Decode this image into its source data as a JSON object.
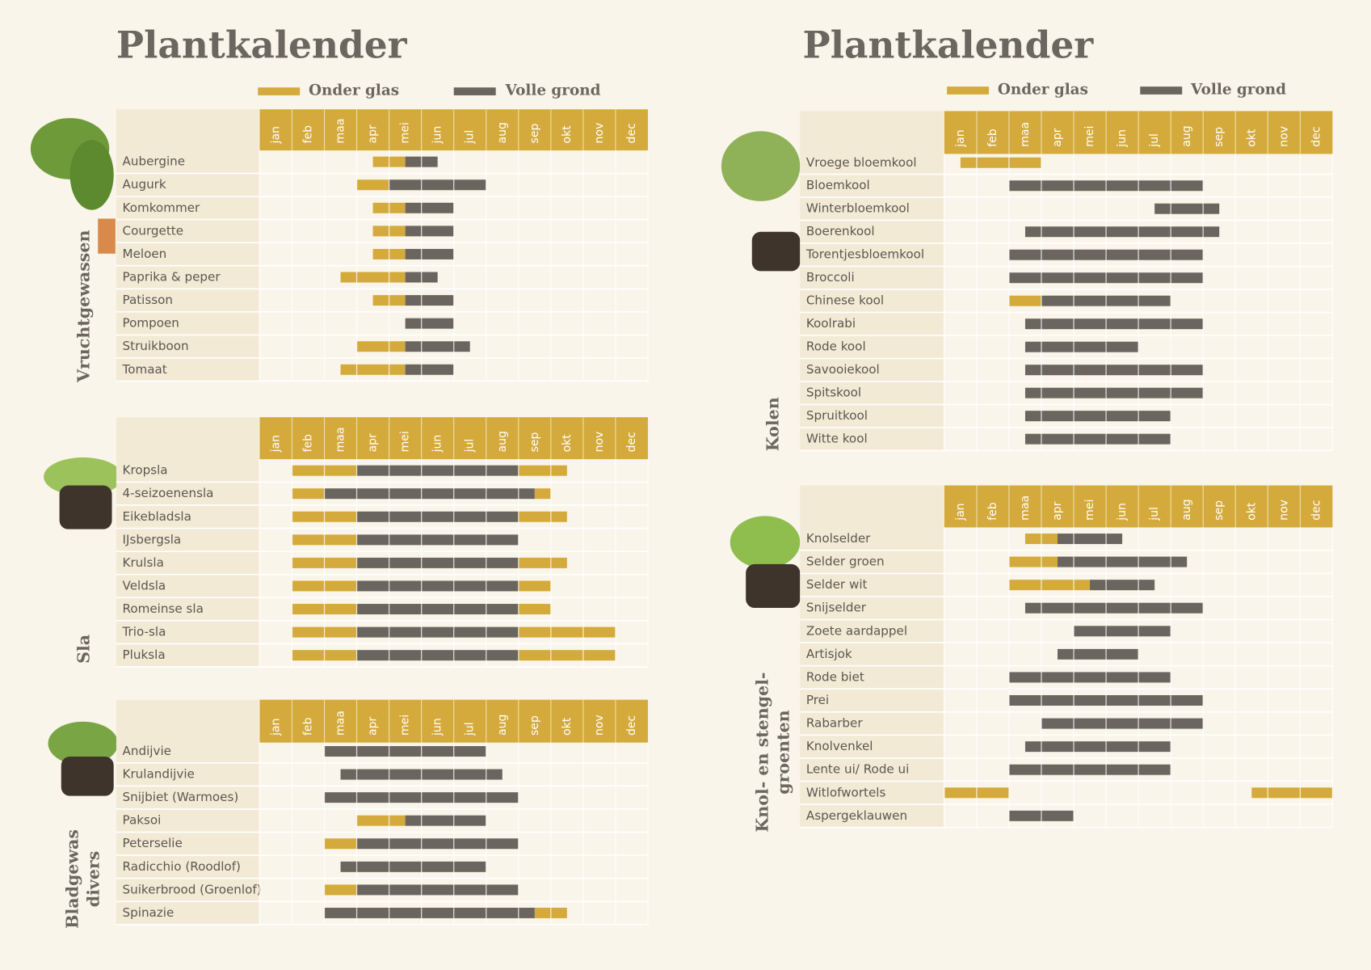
{
  "months": [
    "jan",
    "feb",
    "maa",
    "apr",
    "mei",
    "jun",
    "jul",
    "aug",
    "sep",
    "okt",
    "nov",
    "dec"
  ],
  "pages": [
    {
      "title": "Plantkalender",
      "legend": {
        "glas": "Onder glas",
        "grond": "Volle grond"
      },
      "sections": [
        {
          "label": [
            "Vruchtgewassen"
          ],
          "rows": [
            {
              "name": "Aubergine",
              "glas": [
                [
                  3.5,
                  4.5
                ]
              ],
              "grond": [
                [
                  4.5,
                  5.5
                ]
              ]
            },
            {
              "name": "Augurk",
              "glas": [
                [
                  3,
                  4
                ]
              ],
              "grond": [
                [
                  4,
                  7
                ]
              ]
            },
            {
              "name": "Komkommer",
              "glas": [
                [
                  3.5,
                  4.5
                ]
              ],
              "grond": [
                [
                  4.5,
                  6
                ]
              ]
            },
            {
              "name": "Courgette",
              "glas": [
                [
                  3.5,
                  4.5
                ]
              ],
              "grond": [
                [
                  4.5,
                  6
                ]
              ]
            },
            {
              "name": "Meloen",
              "glas": [
                [
                  3.5,
                  4.5
                ]
              ],
              "grond": [
                [
                  4.5,
                  6
                ]
              ]
            },
            {
              "name": "Paprika & peper",
              "glas": [
                [
                  2.5,
                  4.5
                ]
              ],
              "grond": [
                [
                  4.5,
                  5.5
                ]
              ]
            },
            {
              "name": "Patisson",
              "glas": [
                [
                  3.5,
                  4.5
                ]
              ],
              "grond": [
                [
                  4.5,
                  6
                ]
              ]
            },
            {
              "name": "Pompoen",
              "glas": [],
              "grond": [
                [
                  4.5,
                  6
                ]
              ]
            },
            {
              "name": "Struikboon",
              "glas": [
                [
                  3,
                  4.5
                ]
              ],
              "grond": [
                [
                  4.5,
                  6.5
                ]
              ]
            },
            {
              "name": "Tomaat",
              "glas": [
                [
                  2.5,
                  4.5
                ]
              ],
              "grond": [
                [
                  4.5,
                  6
                ]
              ]
            }
          ]
        },
        {
          "label": [
            "Sla"
          ],
          "rows": [
            {
              "name": "Kropsla",
              "glas": [
                [
                  1,
                  3
                ],
                [
                  8,
                  9.5
                ]
              ],
              "grond": [
                [
                  3,
                  8
                ]
              ]
            },
            {
              "name": "4-seizoenensla",
              "glas": [
                [
                  1,
                  2
                ],
                [
                  8.5,
                  9
                ]
              ],
              "grond": [
                [
                  2,
                  8.5
                ]
              ]
            },
            {
              "name": "Eikebladsla",
              "glas": [
                [
                  1,
                  3
                ],
                [
                  8,
                  9.5
                ]
              ],
              "grond": [
                [
                  3,
                  8
                ]
              ]
            },
            {
              "name": "IJsbergsla",
              "glas": [
                [
                  1,
                  3
                ]
              ],
              "grond": [
                [
                  3,
                  8
                ]
              ]
            },
            {
              "name": "Krulsla",
              "glas": [
                [
                  1,
                  3
                ],
                [
                  8,
                  9.5
                ]
              ],
              "grond": [
                [
                  3,
                  8
                ]
              ]
            },
            {
              "name": "Veldsla",
              "glas": [
                [
                  1,
                  3
                ],
                [
                  8,
                  9
                ]
              ],
              "grond": [
                [
                  3,
                  8
                ]
              ]
            },
            {
              "name": "Romeinse sla",
              "glas": [
                [
                  1,
                  3
                ],
                [
                  8,
                  9
                ]
              ],
              "grond": [
                [
                  3,
                  8
                ]
              ]
            },
            {
              "name": "Trio-sla",
              "glas": [
                [
                  1,
                  3
                ],
                [
                  8,
                  11
                ]
              ],
              "grond": [
                [
                  3,
                  8
                ]
              ]
            },
            {
              "name": "Pluksla",
              "glas": [
                [
                  1,
                  3
                ],
                [
                  8,
                  11
                ]
              ],
              "grond": [
                [
                  3,
                  8
                ]
              ]
            }
          ]
        },
        {
          "label": [
            "Bladgewas",
            "divers"
          ],
          "rows": [
            {
              "name": "Andijvie",
              "glas": [],
              "grond": [
                [
                  2,
                  7
                ]
              ]
            },
            {
              "name": "Krulandijvie",
              "glas": [],
              "grond": [
                [
                  2.5,
                  7.5
                ]
              ]
            },
            {
              "name": "Snijbiet (Warmoes)",
              "glas": [],
              "grond": [
                [
                  2,
                  8
                ]
              ]
            },
            {
              "name": "Paksoi",
              "glas": [
                [
                  3,
                  4.5
                ]
              ],
              "grond": [
                [
                  4.5,
                  7
                ]
              ]
            },
            {
              "name": "Peterselie",
              "glas": [
                [
                  2,
                  3
                ]
              ],
              "grond": [
                [
                  3,
                  8
                ]
              ]
            },
            {
              "name": "Radicchio (Roodlof)",
              "glas": [],
              "grond": [
                [
                  2.5,
                  7
                ]
              ]
            },
            {
              "name": "Suikerbrood (Groenlof)",
              "glas": [
                [
                  2,
                  3
                ]
              ],
              "grond": [
                [
                  3,
                  8
                ]
              ]
            },
            {
              "name": "Spinazie",
              "glas": [
                [
                  8.5,
                  9.5
                ]
              ],
              "grond": [
                [
                  2,
                  8.5
                ]
              ]
            }
          ]
        }
      ]
    },
    {
      "title": "Plantkalender",
      "legend": {
        "glas": "Onder glas",
        "grond": "Volle grond"
      },
      "sections": [
        {
          "label": [
            "Kolen"
          ],
          "rows": [
            {
              "name": "Vroege bloemkool",
              "glas": [
                [
                  0.5,
                  3
                ]
              ],
              "grond": []
            },
            {
              "name": "Bloemkool",
              "glas": [],
              "grond": [
                [
                  2,
                  8
                ]
              ]
            },
            {
              "name": "Winterbloemkool",
              "glas": [],
              "grond": [
                [
                  6.5,
                  8.5
                ]
              ]
            },
            {
              "name": "Boerenkool",
              "glas": [],
              "grond": [
                [
                  2.5,
                  8.5
                ]
              ]
            },
            {
              "name": "Torentjesbloemkool",
              "glas": [],
              "grond": [
                [
                  2,
                  8
                ]
              ]
            },
            {
              "name": "Broccoli",
              "glas": [],
              "grond": [
                [
                  2,
                  8
                ]
              ]
            },
            {
              "name": "Chinese kool",
              "glas": [
                [
                  2,
                  3
                ]
              ],
              "grond": [
                [
                  3,
                  7
                ]
              ]
            },
            {
              "name": "Koolrabi",
              "glas": [],
              "grond": [
                [
                  2.5,
                  8
                ]
              ]
            },
            {
              "name": "Rode kool",
              "glas": [],
              "grond": [
                [
                  2.5,
                  6
                ]
              ]
            },
            {
              "name": "Savooiekool",
              "glas": [],
              "grond": [
                [
                  2.5,
                  8
                ]
              ]
            },
            {
              "name": "Spitskool",
              "glas": [],
              "grond": [
                [
                  2.5,
                  8
                ]
              ]
            },
            {
              "name": "Spruitkool",
              "glas": [],
              "grond": [
                [
                  2.5,
                  7
                ]
              ]
            },
            {
              "name": "Witte kool",
              "glas": [],
              "grond": [
                [
                  2.5,
                  7
                ]
              ]
            }
          ]
        },
        {
          "label": [
            "Knol- en stengel-",
            "groenten"
          ],
          "rows": [
            {
              "name": "Knolselder",
              "glas": [
                [
                  2.5,
                  3.5
                ]
              ],
              "grond": [
                [
                  3.5,
                  5.5
                ]
              ]
            },
            {
              "name": "Selder groen",
              "glas": [
                [
                  2,
                  3.5
                ]
              ],
              "grond": [
                [
                  3.5,
                  7.5
                ]
              ]
            },
            {
              "name": "Selder wit",
              "glas": [
                [
                  2,
                  4.5
                ]
              ],
              "grond": [
                [
                  4.5,
                  6.5
                ]
              ]
            },
            {
              "name": "Snijselder",
              "glas": [],
              "grond": [
                [
                  2.5,
                  8
                ]
              ]
            },
            {
              "name": "Zoete aardappel",
              "glas": [],
              "grond": [
                [
                  4,
                  7
                ]
              ]
            },
            {
              "name": "Artisjok",
              "glas": [],
              "grond": [
                [
                  3.5,
                  6
                ]
              ]
            },
            {
              "name": "Rode biet",
              "glas": [],
              "grond": [
                [
                  2,
                  7
                ]
              ]
            },
            {
              "name": "Prei",
              "glas": [],
              "grond": [
                [
                  2,
                  8
                ]
              ]
            },
            {
              "name": "Rabarber",
              "glas": [],
              "grond": [
                [
                  3,
                  8
                ]
              ]
            },
            {
              "name": "Knolvenkel",
              "glas": [],
              "grond": [
                [
                  2.5,
                  7
                ]
              ]
            },
            {
              "name": "Lente ui/ Rode ui",
              "glas": [],
              "grond": [
                [
                  2,
                  7
                ]
              ]
            },
            {
              "name": "Witlofwortels",
              "glas": [
                [
                  0,
                  2
                ],
                [
                  9.5,
                  12
                ]
              ],
              "grond": []
            },
            {
              "name": "Aspergeklauwen",
              "glas": [],
              "grond": [
                [
                  2,
                  4
                ]
              ]
            }
          ]
        }
      ]
    }
  ]
}
